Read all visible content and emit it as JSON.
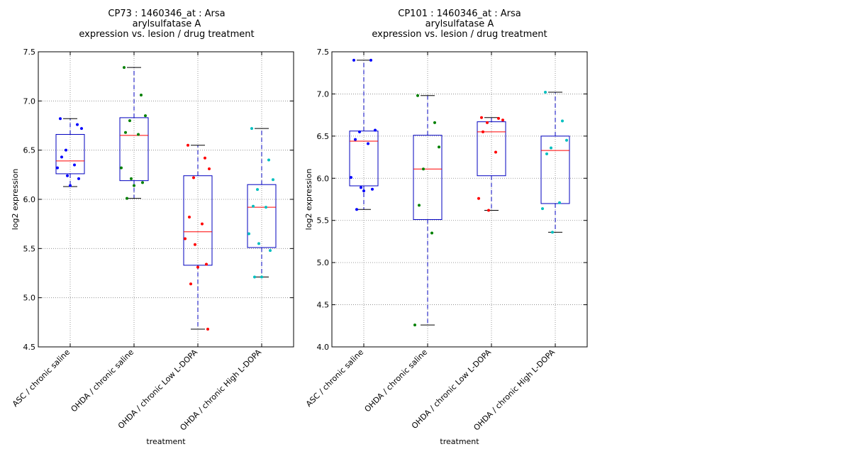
{
  "colors": {
    "box": "#0000bf",
    "median": "#ff0000",
    "whisker_cap": "#000000",
    "grid": "#808080",
    "groups": [
      "#0000ff",
      "#008000",
      "#ff0000",
      "#00bfbf"
    ]
  },
  "chart_data": [
    {
      "type": "box",
      "title": [
        "CP73 : 1460346_at : Arsa",
        "arylsulfatase A",
        "expression vs. lesion / drug treatment"
      ],
      "xlabel": "treatment",
      "ylabel": "log2 expression",
      "ylim": [
        4.5,
        7.5
      ],
      "yticks": [
        "4.5",
        "5.0",
        "5.5",
        "6.0",
        "6.5",
        "7.0",
        "7.5"
      ],
      "grid": true,
      "categories": [
        "ASC / chronic saline",
        "OHDA / chronic saline",
        "OHDA / chronic Low L-DOPA",
        "OHDA / chronic High L-DOPA"
      ],
      "boxes": [
        {
          "q1": 6.26,
          "median": 6.39,
          "q3": 6.66,
          "whislo": 6.13,
          "whishi": 6.82
        },
        {
          "q1": 6.19,
          "median": 6.65,
          "q3": 6.83,
          "whislo": 6.01,
          "whishi": 7.34
        },
        {
          "q1": 5.33,
          "median": 5.67,
          "q3": 6.24,
          "whislo": 4.68,
          "whishi": 6.55
        },
        {
          "q1": 5.51,
          "median": 5.92,
          "q3": 6.15,
          "whislo": 5.21,
          "whishi": 6.72
        }
      ],
      "points": [
        [
          6.82,
          6.76,
          6.72,
          6.5,
          6.43,
          6.35,
          6.32,
          6.24,
          6.21,
          6.14
        ],
        [
          7.34,
          7.06,
          6.85,
          6.8,
          6.68,
          6.66,
          6.32,
          6.21,
          6.17,
          6.14,
          6.01
        ],
        [
          6.55,
          6.42,
          6.31,
          6.22,
          5.82,
          5.75,
          5.6,
          5.54,
          5.34,
          5.31,
          5.14,
          4.68
        ],
        [
          6.72,
          6.4,
          6.2,
          6.1,
          5.93,
          5.92,
          5.65,
          5.55,
          5.48,
          5.21,
          5.21
        ]
      ]
    },
    {
      "type": "box",
      "title": [
        "CP101 : 1460346_at : Arsa",
        "arylsulfatase A",
        "expression vs. lesion / drug treatment"
      ],
      "xlabel": "treatment",
      "ylabel": "log2 expression",
      "ylim": [
        4.0,
        7.5
      ],
      "yticks": [
        "4.0",
        "4.5",
        "5.0",
        "5.5",
        "6.0",
        "6.5",
        "7.0",
        "7.5"
      ],
      "grid": true,
      "categories": [
        "ASC / chronic saline",
        "OHDA / chronic saline",
        "OHDA / chronic Low L-DOPA",
        "OHDA / chronic High L-DOPA"
      ],
      "boxes": [
        {
          "q1": 5.91,
          "median": 6.44,
          "q3": 6.56,
          "whislo": 5.63,
          "whishi": 7.4
        },
        {
          "q1": 5.51,
          "median": 6.11,
          "q3": 6.51,
          "whislo": 4.26,
          "whishi": 6.98
        },
        {
          "q1": 6.03,
          "median": 6.55,
          "q3": 6.67,
          "whislo": 5.62,
          "whishi": 6.72
        },
        {
          "q1": 5.7,
          "median": 6.33,
          "q3": 6.5,
          "whislo": 5.36,
          "whishi": 7.02
        }
      ],
      "points": [
        [
          7.4,
          7.4,
          6.57,
          6.55,
          6.46,
          6.41,
          6.01,
          5.89,
          5.87,
          5.85,
          5.63
        ],
        [
          6.98,
          6.66,
          6.37,
          6.11,
          5.68,
          5.35,
          4.26
        ],
        [
          6.72,
          6.71,
          6.69,
          6.66,
          6.55,
          6.31,
          5.76,
          5.62
        ],
        [
          7.02,
          6.68,
          6.45,
          6.36,
          6.29,
          5.71,
          5.64,
          5.36
        ]
      ]
    }
  ]
}
